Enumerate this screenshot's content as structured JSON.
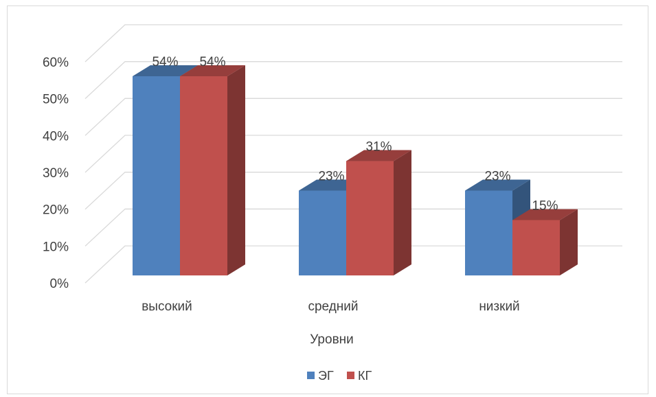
{
  "chart_data": {
    "type": "bar",
    "style": "3d-clustered-column",
    "categories": [
      "высокий",
      "средний",
      "низкий"
    ],
    "series": [
      {
        "name": "ЭГ",
        "values": [
          54,
          23,
          23
        ],
        "labels": [
          "54%",
          "23%",
          "23%"
        ],
        "color": "#4f81bd"
      },
      {
        "name": "КГ",
        "values": [
          54,
          31,
          15
        ],
        "labels": [
          "54%",
          "31%",
          "15%"
        ],
        "color": "#c0504d"
      }
    ],
    "xlabel": "Уровни",
    "ylabel": "",
    "ylim": [
      0,
      60
    ],
    "yticks": [
      "0%",
      "10%",
      "20%",
      "30%",
      "40%",
      "50%",
      "60%"
    ],
    "grid": true,
    "legend_position": "bottom"
  }
}
